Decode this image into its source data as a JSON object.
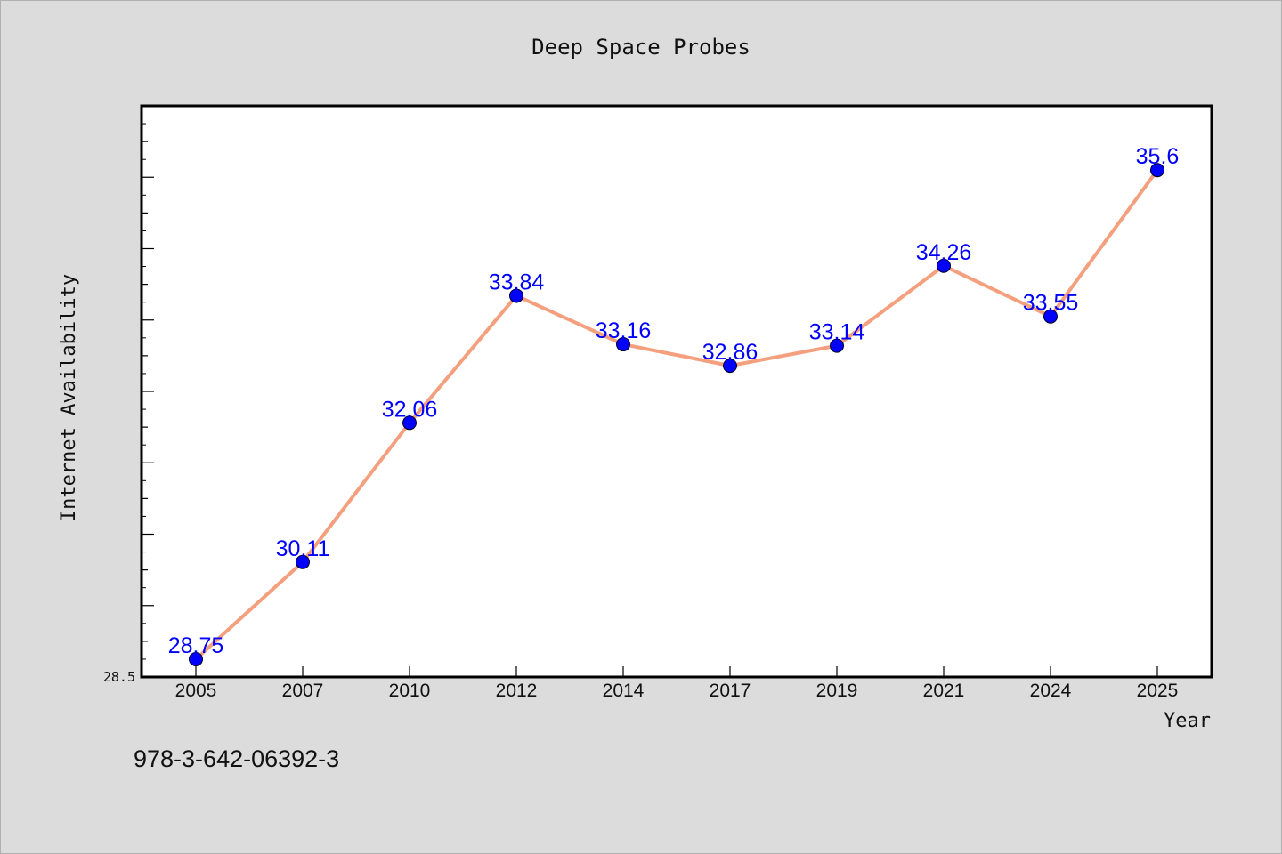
{
  "chart_data": {
    "type": "line",
    "title": "Deep Space Probes",
    "xlabel": "Year",
    "ylabel": "Internet Availability",
    "categories": [
      "2005",
      "2007",
      "2010",
      "2012",
      "2014",
      "2017",
      "2019",
      "2021",
      "2024",
      "2025"
    ],
    "series": [
      {
        "values": [
          28.75,
          30.11,
          32.06,
          33.84,
          33.16,
          32.86,
          33.14,
          34.26,
          33.55,
          35.6
        ],
        "line_color": "#f4a07e",
        "marker_color": "#0000ff"
      }
    ],
    "data_labels": [
      "28.75",
      "30.11",
      "32.06",
      "33.84",
      "33.16",
      "32.86",
      "33.14",
      "34.26",
      "33.55",
      "35.6"
    ],
    "ylim": [
      28.5,
      36.5
    ],
    "yticks_labeled": [
      "28.5"
    ],
    "grid": false,
    "legend": "none"
  },
  "footnote": "978-3-642-06392-3"
}
